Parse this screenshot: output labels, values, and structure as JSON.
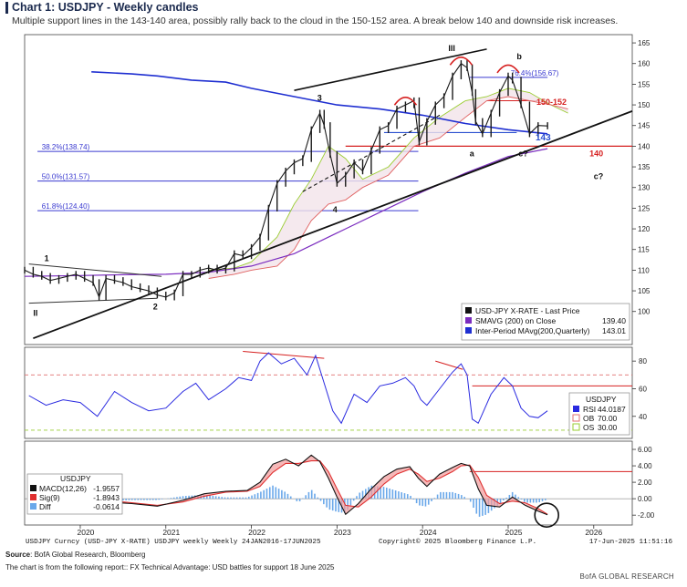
{
  "header": {
    "title": "Chart 1: USDJPY - Weekly candles",
    "subtitle": "Multiple support lines in the 143-140 area, possibly rally back to the cloud in the 150-152 area. A break below 140 and downside risk increases."
  },
  "footer": {
    "source_label": "Source",
    "source_text": ": BofA Global Research, Bloomberg",
    "note": "The chart is from the following report:: FX Technical Advantage: USD battles for support 18 June 2025",
    "brand": "BofA GLOBAL RESEARCH",
    "ticker_line": "USDJPY Curncy (USD-JPY X-RATE) USDJPY weekly  Weekly 24JAN2016-17JUN2025",
    "copyright": "Copyright© 2025 Bloomberg Finance L.P.",
    "timestamp": "17-Jun-2025 11:51:16"
  },
  "colors": {
    "price": "#1a1a1a",
    "sma200": "#7b2cbf",
    "ma200q": "#1f2fd1",
    "cloud_upper": "#9acd32",
    "cloud_lower": "#e06060",
    "fib": "#3a3ad0",
    "annot_red": "#d62020",
    "rsi": "#2a2ae0",
    "macd": "#111111",
    "signal": "#e03030",
    "hist": "#6aa8ea"
  },
  "chart_data": [
    {
      "type": "line",
      "panel": "price",
      "title": "USDJPY Weekly candles",
      "ylim": [
        92,
        167
      ],
      "xlim": [
        2019.35,
        2026.45
      ],
      "y_ticks": [
        100,
        105,
        110,
        115,
        120,
        125,
        130,
        135,
        140,
        145,
        150,
        155,
        160,
        165
      ],
      "x_ticks": [
        2020,
        2021,
        2022,
        2023,
        2024,
        2025,
        2026
      ],
      "legend": {
        "position": "bottom-right",
        "entries": [
          {
            "name": "USD-JPY X-RATE - Last Price",
            "value": ""
          },
          {
            "name": "SMAVG (200)  on Close",
            "value": "139.40"
          },
          {
            "name": "Inter-Period MAvg(200,Quarterly)",
            "value": "143.01"
          }
        ]
      },
      "series": [
        {
          "name": "USD-JPY X-RATE - Last Price",
          "x": [
            2019.35,
            2019.45,
            2019.55,
            2019.65,
            2019.75,
            2019.85,
            2019.95,
            2020.05,
            2020.15,
            2020.22,
            2020.3,
            2020.4,
            2020.5,
            2020.6,
            2020.7,
            2020.8,
            2020.9,
            2021.0,
            2021.1,
            2021.2,
            2021.3,
            2021.4,
            2021.5,
            2021.6,
            2021.7,
            2021.8,
            2021.9,
            2022.0,
            2022.1,
            2022.2,
            2022.3,
            2022.4,
            2022.5,
            2022.6,
            2022.7,
            2022.8,
            2022.85,
            2022.92,
            2023.0,
            2023.1,
            2023.2,
            2023.3,
            2023.4,
            2023.5,
            2023.6,
            2023.7,
            2023.8,
            2023.9,
            2023.96,
            2024.05,
            2024.15,
            2024.25,
            2024.35,
            2024.45,
            2024.52,
            2024.58,
            2024.62,
            2024.7,
            2024.8,
            2024.9,
            2025.0,
            2025.05,
            2025.15,
            2025.25,
            2025.35,
            2025.46
          ],
          "values": [
            110,
            109,
            108.5,
            107.5,
            108,
            108.5,
            109,
            108,
            107,
            103.5,
            108,
            107.5,
            107,
            106,
            105.5,
            105,
            104,
            103.5,
            104.5,
            109,
            109,
            110,
            110.5,
            110,
            110.5,
            114,
            113.5,
            115.5,
            118,
            125,
            131,
            134,
            136,
            137,
            144,
            148,
            145,
            138,
            131,
            133,
            136,
            134,
            139,
            144,
            145,
            149,
            150,
            151,
            141,
            146,
            150,
            152,
            157,
            160,
            159,
            153,
            146,
            143,
            148,
            153,
            157,
            156,
            150,
            143,
            145,
            144.9
          ]
        },
        {
          "name": "SMAVG (200) on Close",
          "x": [
            2019.35,
            2020.0,
            2020.5,
            2021.0,
            2021.5,
            2022.0,
            2022.5,
            2023.0,
            2023.5,
            2024.0,
            2024.5,
            2025.0,
            2025.46
          ],
          "values": [
            108.5,
            108.7,
            108.9,
            109,
            109.5,
            111,
            114,
            119,
            124,
            129,
            133.5,
            137.5,
            139.4
          ]
        },
        {
          "name": "Inter-Period MAvg(200,Quarterly)",
          "x": [
            2020.13,
            2020.6,
            2020.9,
            2021.3,
            2021.7,
            2022.0,
            2022.5,
            2023.0,
            2023.5,
            2024.0,
            2024.5,
            2025.0,
            2025.46
          ],
          "values": [
            158,
            157.5,
            157,
            156,
            155.5,
            154,
            152,
            150,
            149,
            147.5,
            145.5,
            144,
            143.01
          ]
        },
        {
          "name": "Cloud upper span",
          "x": [
            2021.5,
            2021.8,
            2022.0,
            2022.3,
            2022.5,
            2022.7,
            2022.9,
            2023.1,
            2023.3,
            2023.6,
            2023.9,
            2024.2,
            2024.5,
            2024.75,
            2025.0,
            2025.25,
            2025.5,
            2025.7
          ],
          "values": [
            110,
            110.5,
            112,
            118,
            126,
            132,
            140,
            137,
            132,
            135,
            142,
            147,
            151,
            152,
            154,
            153,
            150,
            148
          ]
        },
        {
          "name": "Cloud lower span",
          "x": [
            2021.5,
            2021.8,
            2022.0,
            2022.3,
            2022.5,
            2022.7,
            2022.9,
            2023.1,
            2023.3,
            2023.6,
            2023.9,
            2024.2,
            2024.5,
            2024.75,
            2025.0,
            2025.25,
            2025.5,
            2025.7
          ],
          "values": [
            108,
            109,
            110,
            111,
            115,
            122,
            126,
            127,
            130,
            133,
            140,
            142,
            147,
            151,
            152,
            151,
            150,
            149
          ]
        }
      ],
      "fibonacci": [
        {
          "label": "76.4%(156.67)",
          "value": 156.67
        },
        {
          "label": "38.2%(138.74)",
          "value": 138.74
        },
        {
          "label": "50.0%(131.57)",
          "value": 131.57
        },
        {
          "label": "61.8%(124.40)",
          "value": 124.4
        }
      ],
      "annotations": [
        "1",
        "2",
        "3",
        "4",
        "II",
        "III",
        "a",
        "b",
        "c?",
        "c?",
        "150-152",
        "143",
        "140"
      ]
    },
    {
      "type": "line",
      "panel": "rsi",
      "title": "USDJPY RSI",
      "ylim": [
        24,
        90
      ],
      "y_ticks": [
        40,
        60,
        80
      ],
      "legend": {
        "position": "right",
        "title": "USDJPY",
        "entries": [
          {
            "name": "RSI",
            "value": "44.0187"
          },
          {
            "name": "OB",
            "value": "70.00"
          },
          {
            "name": "OS",
            "value": "30.00"
          }
        ]
      },
      "series": [
        {
          "name": "RSI",
          "x": [
            2019.4,
            2019.6,
            2019.8,
            2020.0,
            2020.2,
            2020.4,
            2020.6,
            2020.8,
            2021.0,
            2021.2,
            2021.35,
            2021.5,
            2021.7,
            2021.85,
            2022.0,
            2022.1,
            2022.2,
            2022.35,
            2022.5,
            2022.65,
            2022.75,
            2022.85,
            2022.95,
            2023.05,
            2023.2,
            2023.35,
            2023.5,
            2023.65,
            2023.8,
            2023.9,
            2023.98,
            2024.05,
            2024.2,
            2024.35,
            2024.45,
            2024.52,
            2024.58,
            2024.65,
            2024.8,
            2024.95,
            2025.05,
            2025.15,
            2025.25,
            2025.35,
            2025.46
          ],
          "values": [
            55,
            48,
            52,
            50,
            40,
            58,
            50,
            44,
            46,
            58,
            64,
            52,
            60,
            68,
            66,
            80,
            86,
            78,
            82,
            70,
            84,
            64,
            44,
            35,
            56,
            50,
            62,
            64,
            68,
            62,
            52,
            48,
            60,
            72,
            78,
            70,
            38,
            35,
            56,
            68,
            62,
            46,
            40,
            39,
            44.0187
          ]
        }
      ],
      "thresholds": {
        "overbought": 70,
        "oversold": 30
      }
    },
    {
      "type": "line",
      "panel": "macd",
      "title": "USDJPY MACD",
      "ylim": [
        -3.2,
        7.0
      ],
      "y_ticks": [
        -2.0,
        0.0,
        2.0,
        4.0,
        6.0
      ],
      "y_tick_labels": [
        "-2.00",
        "0.00",
        "2.00",
        "4.00",
        "6.00"
      ],
      "legend": {
        "position": "top-left",
        "title": "USDJPY",
        "entries": [
          {
            "name": "MACD(12,26)",
            "value": "-1.9557"
          },
          {
            "name": "Sig(9)",
            "value": "-1.8943"
          },
          {
            "name": "Diff",
            "value": "-0.0614"
          }
        ]
      },
      "series": [
        {
          "name": "MACD(12,26)",
          "x": [
            2019.4,
            2019.7,
            2020.0,
            2020.3,
            2020.6,
            2020.9,
            2021.2,
            2021.45,
            2021.7,
            2021.95,
            2022.1,
            2022.25,
            2022.4,
            2022.55,
            2022.7,
            2022.8,
            2022.9,
            2023.0,
            2023.1,
            2023.25,
            2023.4,
            2023.55,
            2023.7,
            2023.85,
            2023.95,
            2024.05,
            2024.2,
            2024.35,
            2024.45,
            2024.55,
            2024.65,
            2024.75,
            2024.9,
            2025.05,
            2025.2,
            2025.35,
            2025.46
          ],
          "values": [
            0.1,
            -0.2,
            0.1,
            -0.4,
            -0.6,
            -0.9,
            -0.2,
            0.6,
            0.9,
            1.0,
            2.0,
            4.2,
            4.8,
            4.0,
            5.3,
            4.5,
            2.5,
            0.2,
            -1.9,
            -0.6,
            1.2,
            2.7,
            3.6,
            3.9,
            2.5,
            1.5,
            3.0,
            3.8,
            4.3,
            4.0,
            1.2,
            -0.8,
            -1.0,
            0.2,
            -0.8,
            -1.5,
            -1.9557
          ]
        },
        {
          "name": "Sig(9)",
          "x": [
            2019.4,
            2019.7,
            2020.0,
            2020.3,
            2020.6,
            2020.9,
            2021.2,
            2021.45,
            2021.7,
            2021.95,
            2022.1,
            2022.25,
            2022.4,
            2022.55,
            2022.7,
            2022.8,
            2022.9,
            2023.0,
            2023.1,
            2023.25,
            2023.4,
            2023.55,
            2023.7,
            2023.85,
            2023.95,
            2024.05,
            2024.2,
            2024.35,
            2024.45,
            2024.55,
            2024.65,
            2024.75,
            2024.9,
            2025.05,
            2025.2,
            2025.35,
            2025.46
          ],
          "values": [
            0.1,
            -0.1,
            0.0,
            -0.2,
            -0.5,
            -0.8,
            -0.4,
            0.3,
            0.8,
            0.9,
            1.5,
            3.2,
            4.3,
            4.3,
            4.6,
            4.6,
            3.3,
            1.2,
            -0.8,
            -1.0,
            0.2,
            1.8,
            3.0,
            3.6,
            3.0,
            2.1,
            2.5,
            3.3,
            4.0,
            4.1,
            2.6,
            0.4,
            -0.6,
            -0.3,
            -0.5,
            -1.2,
            -1.8943
          ]
        }
      ]
    }
  ],
  "panel_labels": {
    "x_tick_labels": [
      "2020",
      "2021",
      "2022",
      "2023",
      "2024",
      "2025",
      "2026"
    ]
  }
}
